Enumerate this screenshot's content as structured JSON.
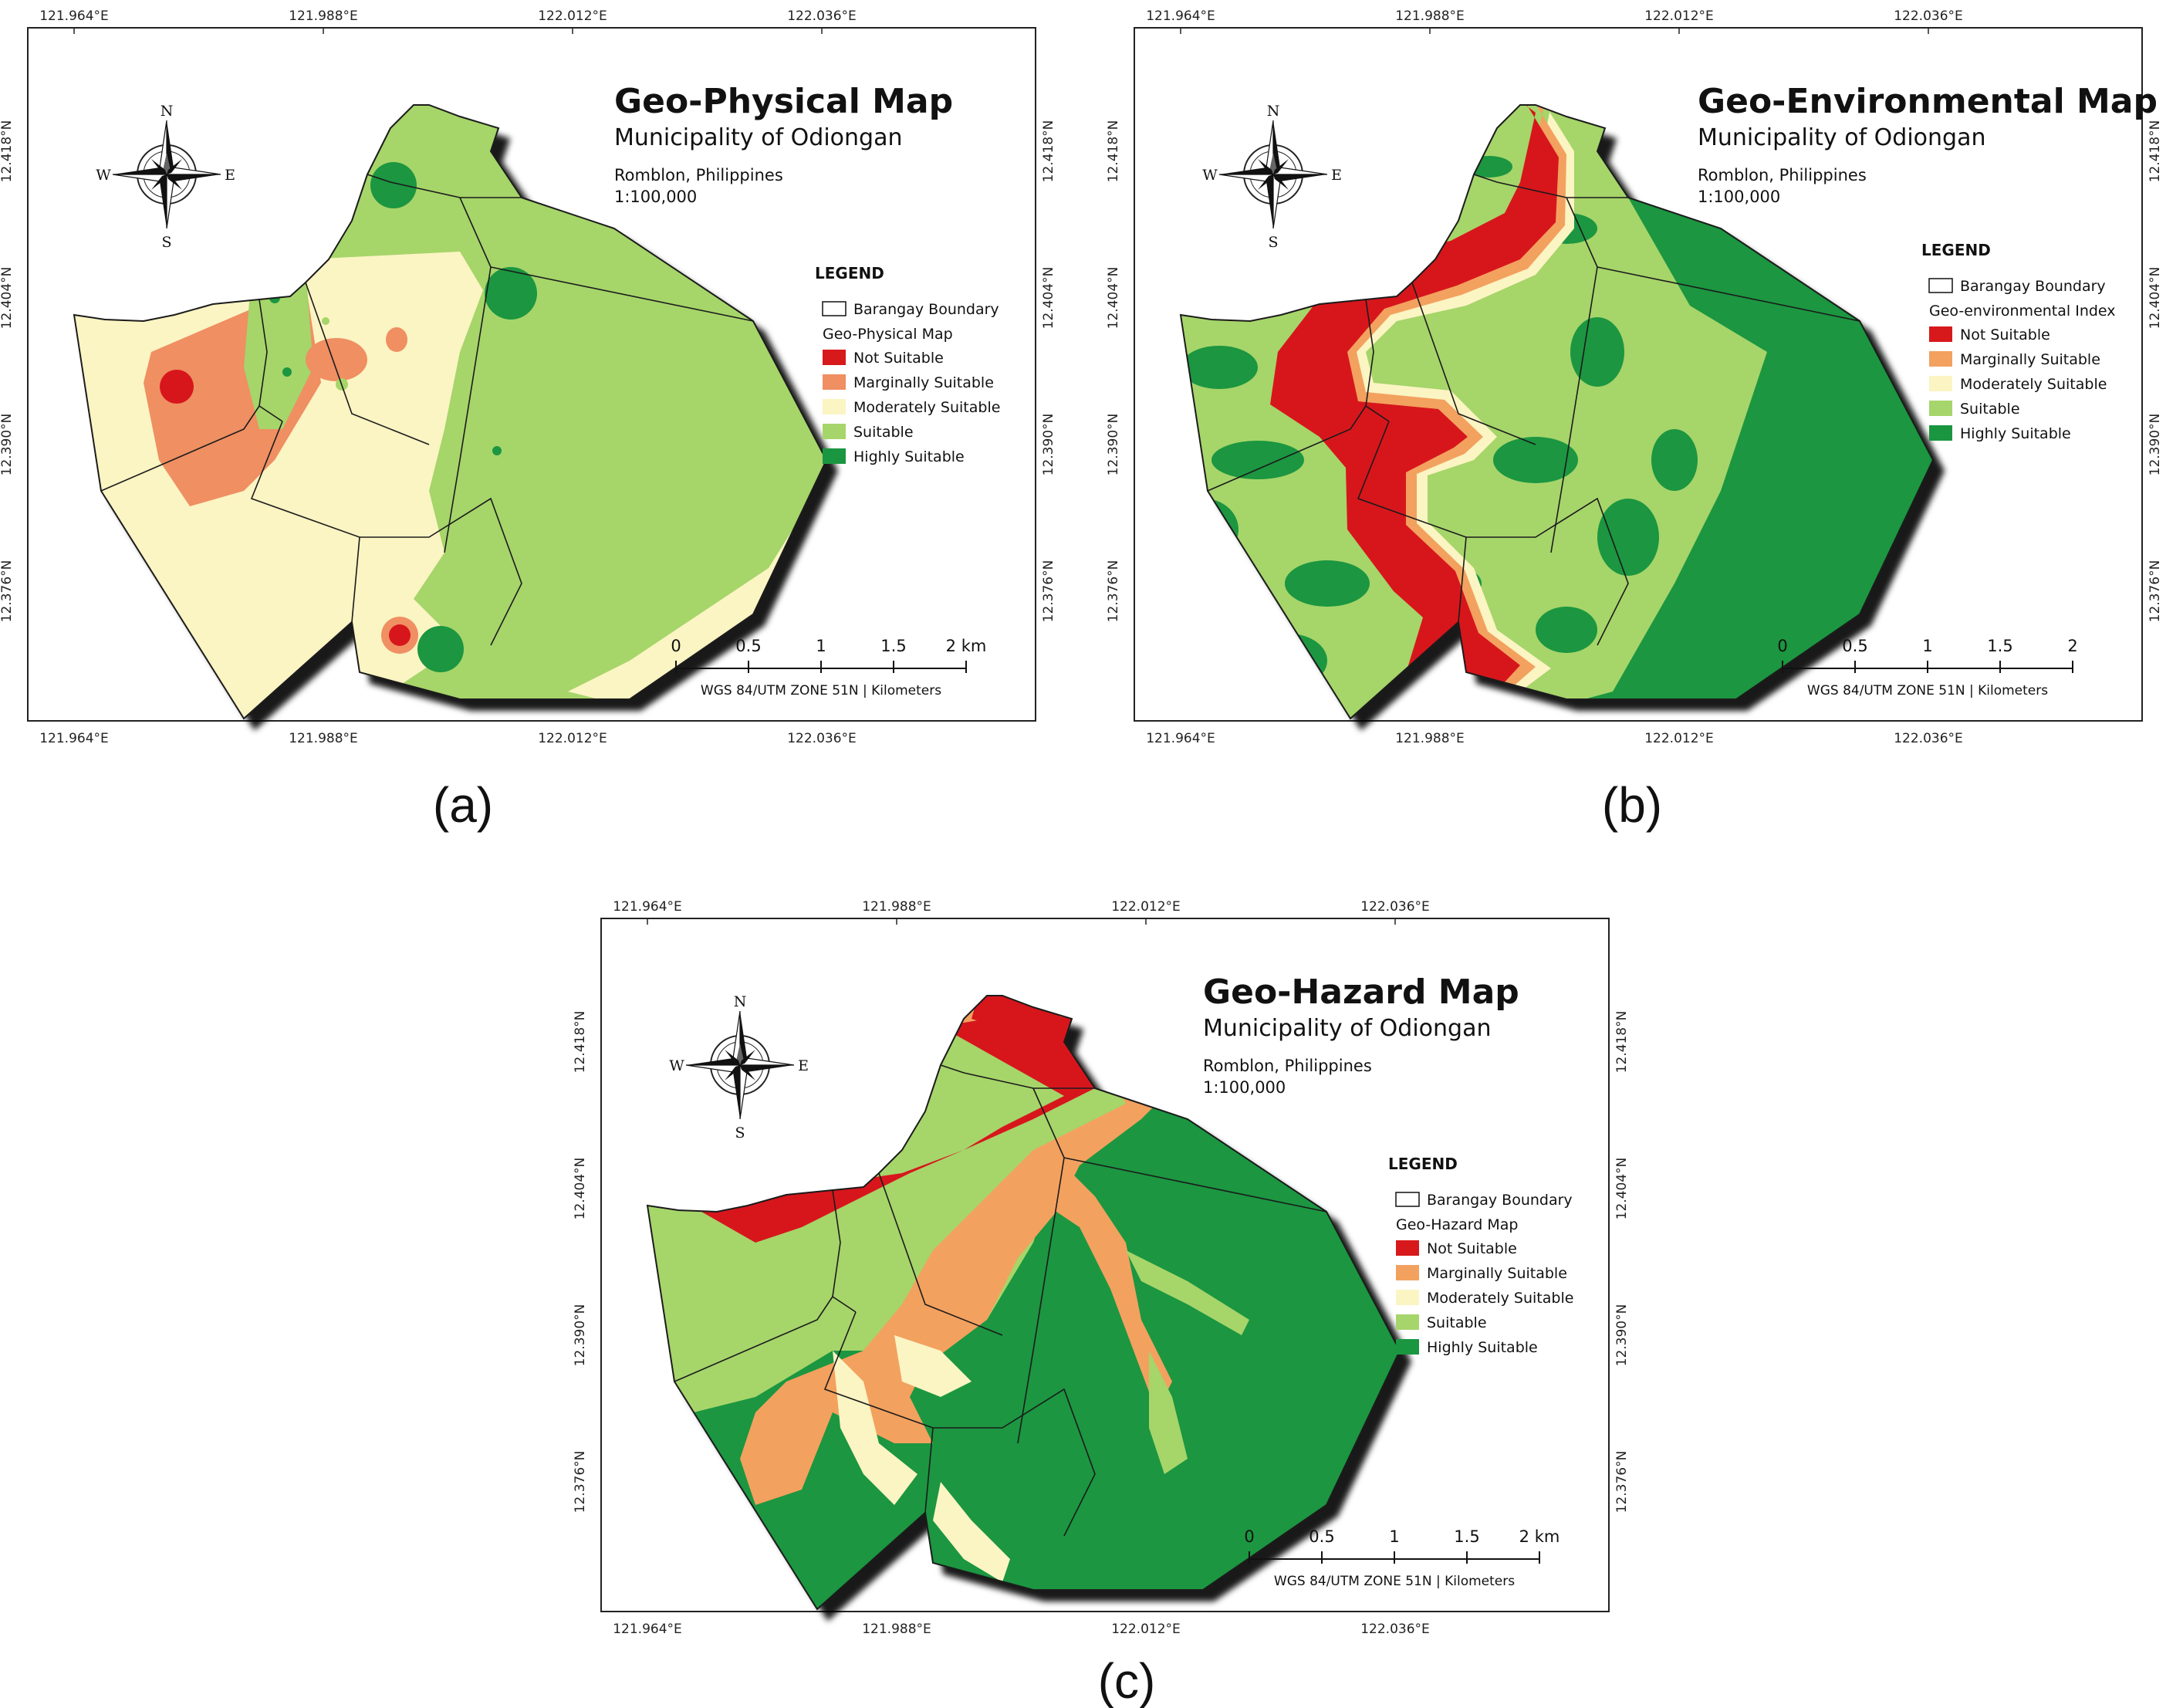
{
  "colors": {
    "not_suitable": "#d7191c",
    "marginally_suitable": "#f3a15f",
    "marginally_suitable_a": "#ef8f62",
    "moderately_suitable": "#fbf4c3",
    "suitable": "#a6d56b",
    "highly_suitable": "#1a9641"
  },
  "coords": {
    "lon_ticks": [
      "121.964°E",
      "121.988°E",
      "122.012°E",
      "122.036°E"
    ],
    "lat_ticks": [
      "12.418°N",
      "12.404°N",
      "12.390°N",
      "12.376°N"
    ]
  },
  "compass": {
    "n": "N",
    "s": "S",
    "e": "E",
    "w": "W"
  },
  "maps": [
    {
      "panel_label": "(a)",
      "title": "Geo-Physical Map",
      "subtitle": "Municipality of Odiongan",
      "location": "Romblon, Philippines",
      "scale_ratio": "1:100,000",
      "legend_heading": "LEGEND",
      "boundary_label": "Barangay Boundary",
      "index_label": "Geo-Physical Map",
      "classes": [
        "Not Suitable",
        "Marginally Suitable",
        "Moderately Suitable",
        "Suitable",
        "Highly Suitable"
      ],
      "scale_ticks": [
        "0",
        "0.5",
        "1",
        "1.5",
        "2 km"
      ],
      "scale_note": "WGS 84/UTM ZONE 51N | Kilometers"
    },
    {
      "panel_label": "(b)",
      "title": "Geo-Environmental Map",
      "subtitle": "Municipality of Odiongan",
      "location": "Romblon, Philippines",
      "scale_ratio": "1:100,000",
      "legend_heading": "LEGEND",
      "boundary_label": "Barangay Boundary",
      "index_label": "Geo-environmental Index",
      "classes": [
        "Not Suitable",
        "Marginally Suitable",
        "Moderately Suitable",
        "Suitable",
        "Highly Suitable"
      ],
      "scale_ticks": [
        "0",
        "0.5",
        "1",
        "1.5",
        "2"
      ],
      "scale_note": "WGS 84/UTM ZONE 51N | Kilometers"
    },
    {
      "panel_label": "(c)",
      "title": "Geo-Hazard Map",
      "subtitle": "Municipality of Odiongan",
      "location": "Romblon, Philippines",
      "scale_ratio": "1:100,000",
      "legend_heading": "LEGEND",
      "boundary_label": "Barangay Boundary",
      "index_label": "Geo-Hazard Map",
      "classes": [
        "Not Suitable",
        "Marginally Suitable",
        "Moderately Suitable",
        "Suitable",
        "Highly Suitable"
      ],
      "scale_ticks": [
        "0",
        "0.5",
        "1",
        "1.5",
        "2 km"
      ],
      "scale_note": "WGS 84/UTM ZONE 51N | Kilometers"
    }
  ]
}
